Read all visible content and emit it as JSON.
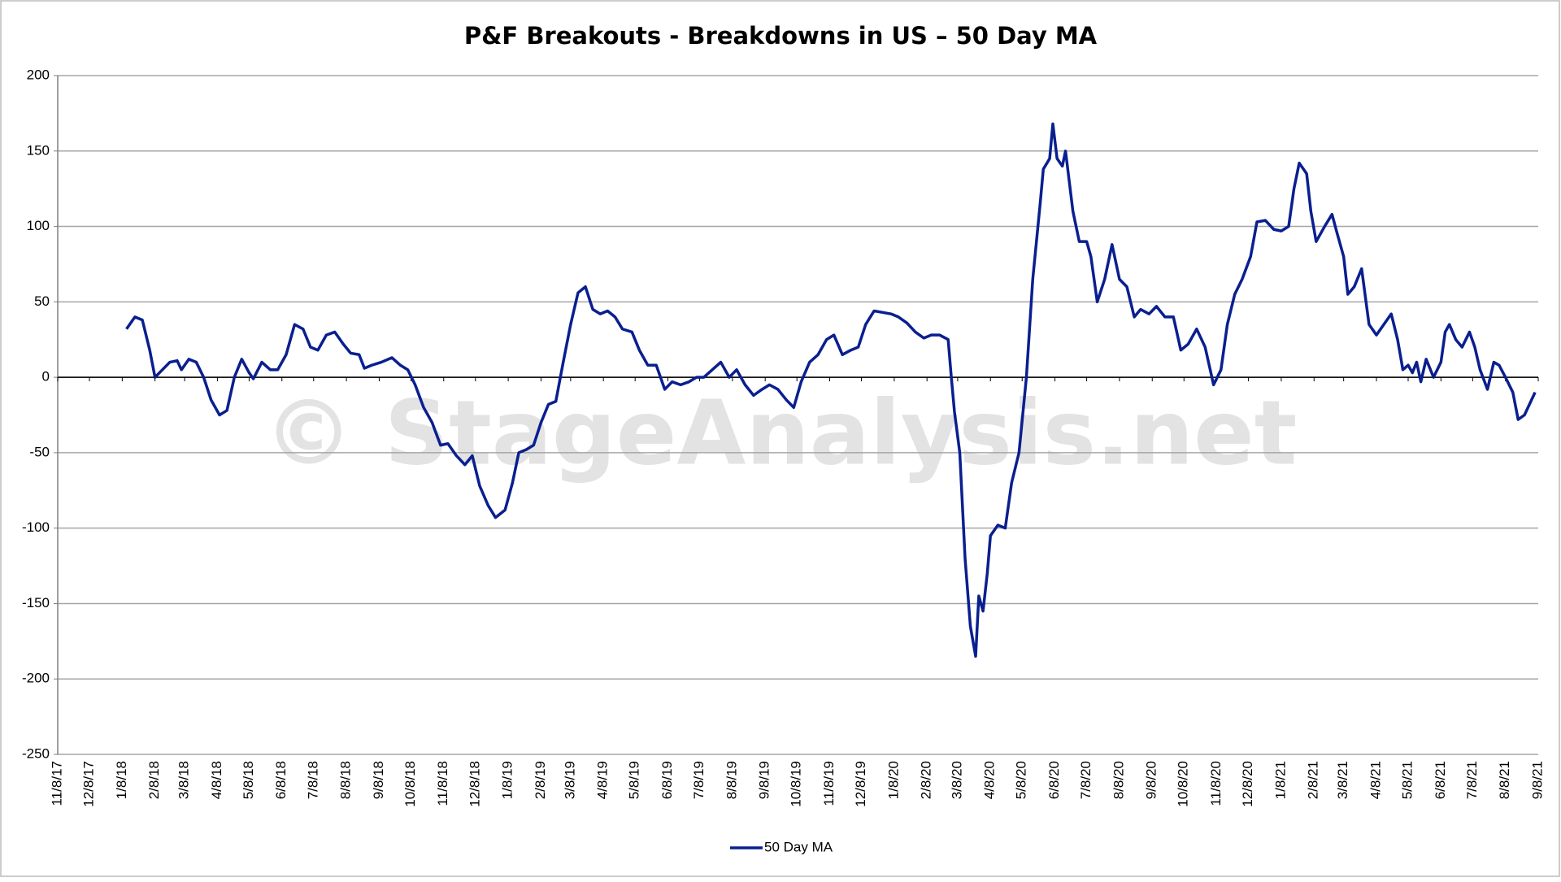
{
  "chart_data": {
    "type": "line",
    "title": "P&F Breakouts - Breakdowns in US – 50 Day MA",
    "watermark": "© StageAnalysis.net",
    "x": [
      "1/12/18",
      "1/20/18",
      "1/27/18",
      "2/3/18",
      "2/8/18",
      "2/15/18",
      "2/22/18",
      "3/1/18",
      "3/5/18",
      "3/12/18",
      "3/19/18",
      "3/26/18",
      "4/2/18",
      "4/10/18",
      "4/17/18",
      "4/24/18",
      "5/1/18",
      "5/8/18",
      "5/12/18",
      "5/20/18",
      "5/28/18",
      "6/4/18",
      "6/12/18",
      "6/20/18",
      "6/28/18",
      "7/5/18",
      "7/12/18",
      "7/20/18",
      "7/28/18",
      "8/5/18",
      "8/12/18",
      "8/20/18",
      "8/25/18",
      "9/1/18",
      "9/10/18",
      "9/20/18",
      "9/28/18",
      "10/5/18",
      "10/12/18",
      "10/20/18",
      "10/28/18",
      "11/5/18",
      "11/12/18",
      "11/20/18",
      "11/28/18",
      "12/5/18",
      "12/12/18",
      "12/20/18",
      "12/27/18",
      "1/5/19",
      "1/12/19",
      "1/18/19",
      "1/25/19",
      "2/1/19",
      "2/8/19",
      "2/15/19",
      "2/22/19",
      "3/1/19",
      "3/8/19",
      "3/15/19",
      "3/22/19",
      "3/29/19",
      "4/5/19",
      "4/12/19",
      "4/19/19",
      "4/26/19",
      "5/5/19",
      "5/12/19",
      "5/20/19",
      "5/28/19",
      "6/5/19",
      "6/12/19",
      "6/20/19",
      "6/28/19",
      "7/5/19",
      "7/12/19",
      "7/20/19",
      "7/28/19",
      "8/5/19",
      "8/12/19",
      "8/20/19",
      "8/28/19",
      "9/5/19",
      "9/12/19",
      "9/20/19",
      "9/28/19",
      "10/5/19",
      "10/12/19",
      "10/20/19",
      "10/28/19",
      "11/5/19",
      "11/12/19",
      "11/20/19",
      "11/28/19",
      "12/5/19",
      "12/12/19",
      "12/20/19",
      "12/28/19",
      "1/5/20",
      "1/12/20",
      "1/20/20",
      "1/28/20",
      "2/5/20",
      "2/12/20",
      "2/20/20",
      "2/28/20",
      "3/2/20",
      "3/5/20",
      "3/10/20",
      "3/15/20",
      "3/20/20",
      "3/25/20",
      "3/28/20",
      "4/1/20",
      "4/5/20",
      "4/8/20",
      "4/15/20",
      "4/22/20",
      "4/28/20",
      "5/5/20",
      "5/12/20",
      "5/18/20",
      "5/25/20",
      "5/28/20",
      "6/3/20",
      "6/6/20",
      "6/10/20",
      "6/15/20",
      "6/18/20",
      "6/25/20",
      "7/1/20",
      "7/8/20",
      "7/12/20",
      "7/18/20",
      "7/25/20",
      "8/1/20",
      "8/8/20",
      "8/15/20",
      "8/22/20",
      "8/28/20",
      "9/5/20",
      "9/12/20",
      "9/20/20",
      "9/28/20",
      "10/5/20",
      "10/12/20",
      "10/20/20",
      "10/28/20",
      "11/5/20",
      "11/12/20",
      "11/18/20",
      "11/25/20",
      "12/2/20",
      "12/10/20",
      "12/16/20",
      "12/24/20",
      "1/1/21",
      "1/8/21",
      "1/15/21",
      "1/20/21",
      "1/25/21",
      "2/1/21",
      "2/5/21",
      "2/10/21",
      "2/18/21",
      "2/25/21",
      "3/2/21",
      "3/8/21",
      "3/12/21",
      "3/18/21",
      "3/25/21",
      "4/1/21",
      "4/8/21",
      "4/15/21",
      "4/22/21",
      "4/28/21",
      "5/3/21",
      "5/8/21",
      "5/12/21",
      "5/16/21",
      "5/20/21",
      "5/25/21",
      "6/1/21",
      "6/8/21",
      "6/12/21",
      "6/16/21",
      "6/22/21",
      "6/28/21",
      "7/5/21",
      "7/10/21",
      "7/15/21",
      "7/22/21",
      "7/28/21",
      "8/2/21",
      "8/8/21",
      "8/15/21",
      "8/20/21",
      "8/26/21",
      "9/5/21"
    ],
    "series": [
      {
        "name": "50 Day MA",
        "color": "#0a1f8f",
        "values": [
          32,
          40,
          38,
          18,
          0,
          5,
          10,
          11,
          5,
          12,
          10,
          0,
          -15,
          -25,
          -22,
          0,
          12,
          3,
          -1,
          10,
          5,
          5,
          15,
          35,
          32,
          20,
          18,
          28,
          30,
          22,
          16,
          15,
          6,
          8,
          10,
          13,
          8,
          5,
          -5,
          -20,
          -30,
          -45,
          -44,
          -52,
          -58,
          -52,
          -72,
          -85,
          -93,
          -88,
          -70,
          -50,
          -48,
          -45,
          -30,
          -18,
          -16,
          10,
          35,
          56,
          60,
          45,
          42,
          44,
          40,
          32,
          30,
          18,
          8,
          8,
          -8,
          -3,
          -5,
          -3,
          0,
          0,
          5,
          10,
          0,
          5,
          -5,
          -12,
          -8,
          -5,
          -8,
          -15,
          -20,
          -3,
          10,
          15,
          25,
          28,
          15,
          18,
          20,
          35,
          44,
          43,
          42,
          40,
          36,
          30,
          26,
          28,
          28,
          25,
          0,
          -23,
          -50,
          -120,
          -165,
          -185,
          -145,
          -155,
          -130,
          -105,
          -98,
          -100,
          -70,
          -50,
          0,
          65,
          115,
          138,
          145,
          168,
          145,
          140,
          150,
          110,
          90,
          90,
          80,
          50,
          65,
          88,
          65,
          60,
          40,
          45,
          42,
          47,
          40,
          40,
          18,
          22,
          32,
          20,
          -5,
          5,
          35,
          55,
          65,
          80,
          103,
          104,
          98,
          97,
          100,
          125,
          142,
          135,
          110,
          90,
          100,
          108,
          95,
          80,
          55,
          60,
          72,
          35,
          28,
          35,
          42,
          25,
          5,
          8,
          3,
          10,
          -3,
          12,
          0,
          10,
          30,
          35,
          25,
          20,
          30,
          20,
          5,
          -8,
          10,
          8,
          0,
          -10,
          -28,
          -25,
          -10
        ]
      }
    ],
    "xlim": [
      "11/8/17",
      "9/8/21"
    ],
    "xticks": [
      "11/8/17",
      "12/8/17",
      "1/8/18",
      "2/8/18",
      "3/8/18",
      "4/8/18",
      "5/8/18",
      "6/8/18",
      "7/8/18",
      "8/8/18",
      "9/8/18",
      "10/8/18",
      "11/8/18",
      "12/8/18",
      "1/8/19",
      "2/8/19",
      "3/8/19",
      "4/8/19",
      "5/8/19",
      "6/8/19",
      "7/8/19",
      "8/8/19",
      "9/8/19",
      "10/8/19",
      "11/8/19",
      "12/8/19",
      "1/8/20",
      "2/8/20",
      "3/8/20",
      "4/8/20",
      "5/8/20",
      "6/8/20",
      "7/8/20",
      "8/8/20",
      "9/8/20",
      "10/8/20",
      "11/8/20",
      "12/8/20",
      "1/8/21",
      "2/8/21",
      "3/8/21",
      "4/8/21",
      "5/8/21",
      "6/8/21",
      "7/8/21",
      "8/8/21",
      "9/8/21"
    ],
    "ylim": [
      -250,
      200
    ],
    "yticks": [
      -250,
      -200,
      -150,
      -100,
      -50,
      0,
      50,
      100,
      150,
      200
    ],
    "grid": true
  }
}
